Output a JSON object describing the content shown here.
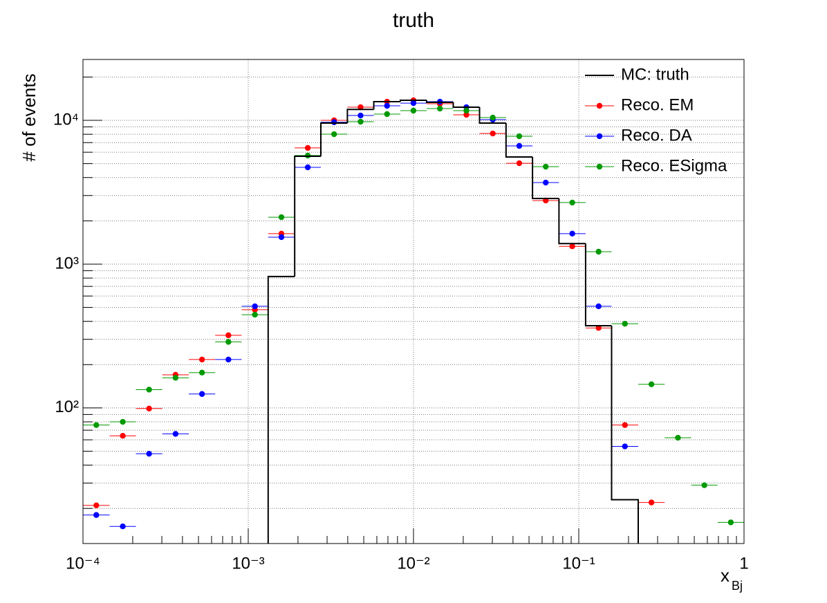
{
  "chart_data": {
    "type": "histogram",
    "title": "truth",
    "xlabel": "x",
    "xlabel_subscript": "Bj",
    "ylabel": "# of events",
    "xscale": "log",
    "yscale": "log",
    "grid": true,
    "legend": "top right",
    "xlim": [
      0.0001,
      1
    ],
    "ylim": [
      11.4,
      26500
    ],
    "xticks": [
      {
        "value": 0.0001,
        "label": "10⁻⁴"
      },
      {
        "value": 0.001,
        "label": "10⁻³"
      },
      {
        "value": 0.01,
        "label": "10⁻²"
      },
      {
        "value": 0.1,
        "label": "10⁻¹"
      },
      1
    ],
    "yticks": [
      {
        "value": 100,
        "label": "10²"
      },
      {
        "value": 1000,
        "label": "10³"
      },
      {
        "value": 10000,
        "label": "10⁴"
      }
    ],
    "xminorticks": [
      0.0002,
      0.0003,
      0.0004,
      0.0005,
      0.0006,
      0.0007,
      0.0008,
      0.0009,
      0.002,
      0.003,
      0.004,
      0.005,
      0.006,
      0.007,
      0.008,
      0.009,
      0.02,
      0.03,
      0.04,
      0.05,
      0.06,
      0.07,
      0.08,
      0.09,
      0.2,
      0.3,
      0.4,
      0.5,
      0.6,
      0.7,
      0.8,
      0.9
    ],
    "yminorticks": [
      20,
      30,
      40,
      50,
      60,
      70,
      80,
      90,
      200,
      300,
      400,
      500,
      600,
      700,
      800,
      900,
      2000,
      3000,
      4000,
      5000,
      6000,
      7000,
      8000,
      9000,
      20000
    ],
    "bins": [
      0.0001,
      0.000145,
      0.000209,
      0.000302,
      0.000437,
      0.000631,
      0.000912,
      0.00132,
      0.00191,
      0.00275,
      0.00398,
      0.00575,
      0.00832,
      0.012,
      0.0174,
      0.0251,
      0.0363,
      0.0525,
      0.0759,
      0.11,
      0.158,
      0.229,
      0.331,
      0.479,
      0.692,
      1
    ],
    "series": [
      {
        "name": "MC: truth",
        "color": "#000000",
        "style": "step",
        "values": [
          null,
          null,
          null,
          null,
          null,
          null,
          null,
          820,
          5620,
          9570,
          11900,
          13480,
          13780,
          13330,
          12340,
          9570,
          5560,
          2860,
          1390,
          373,
          23,
          null,
          null,
          null,
          null
        ]
      },
      {
        "name": "Reco. EM",
        "color": "#ff0000",
        "style": "points",
        "values": [
          21,
          64,
          99,
          170,
          217,
          320,
          482,
          1630,
          6430,
          10000,
          12340,
          13480,
          13780,
          13040,
          10930,
          8100,
          5030,
          2770,
          1330,
          360,
          76,
          22,
          null,
          null,
          null
        ]
      },
      {
        "name": "Reco. DA",
        "color": "#0000ff",
        "style": "points",
        "values": [
          18,
          15,
          48,
          66,
          125,
          217,
          509,
          1540,
          4710,
          9700,
          10800,
          12620,
          13180,
          13480,
          12340,
          10110,
          6640,
          3690,
          1630,
          509,
          54,
          null,
          null,
          null,
          null
        ]
      },
      {
        "name": "Reco. ESigma",
        "color": "#009900",
        "style": "points",
        "values": [
          76,
          80,
          134,
          162,
          176,
          288,
          445,
          2120,
          5690,
          8010,
          9780,
          11050,
          11680,
          12070,
          11680,
          10450,
          7750,
          4760,
          2680,
          1220,
          385,
          146,
          62,
          29,
          16
        ]
      }
    ]
  }
}
